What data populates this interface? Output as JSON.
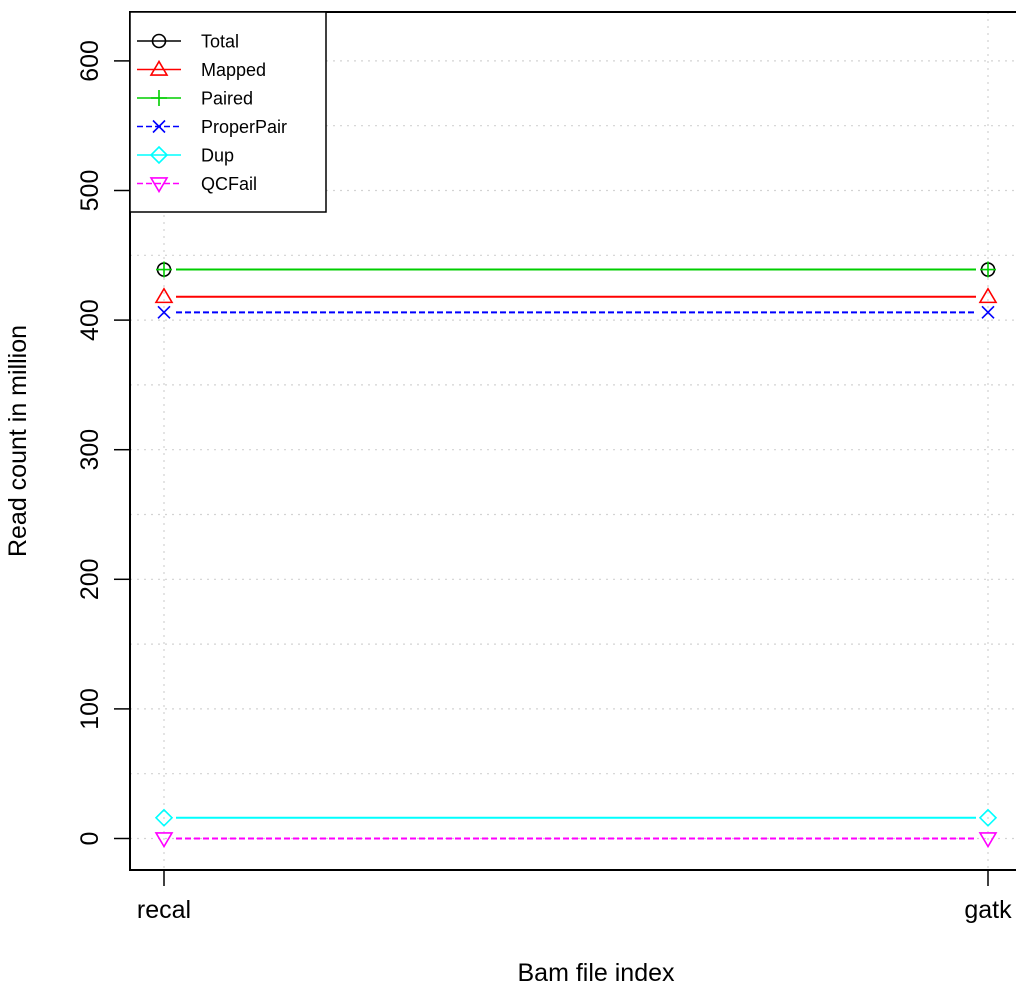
{
  "chart_data": {
    "type": "line",
    "title": "",
    "xlabel": "Bam file index",
    "ylabel": "Read count in million",
    "categories": [
      "recal",
      "gatk"
    ],
    "ylim": [
      -25,
      640
    ],
    "yticks": [
      0,
      100,
      200,
      300,
      400,
      500,
      600
    ],
    "grid": true,
    "legend_position": "top-left",
    "series": [
      {
        "name": "Total",
        "values": [
          439,
          439
        ],
        "color": "#000000",
        "marker": "circle",
        "dashed": false
      },
      {
        "name": "Mapped",
        "values": [
          418,
          418
        ],
        "color": "#ff0000",
        "marker": "triangle-up",
        "dashed": false
      },
      {
        "name": "Paired",
        "values": [
          439,
          439
        ],
        "color": "#00cd00",
        "marker": "plus",
        "dashed": false
      },
      {
        "name": "ProperPair",
        "values": [
          406,
          406
        ],
        "color": "#0000ff",
        "marker": "cross",
        "dashed": true
      },
      {
        "name": "Dup",
        "values": [
          16,
          16
        ],
        "color": "#00ffff",
        "marker": "diamond",
        "dashed": false
      },
      {
        "name": "QCFail",
        "values": [
          0,
          0
        ],
        "color": "#ff00ff",
        "marker": "triangle-down",
        "dashed": true
      }
    ]
  }
}
